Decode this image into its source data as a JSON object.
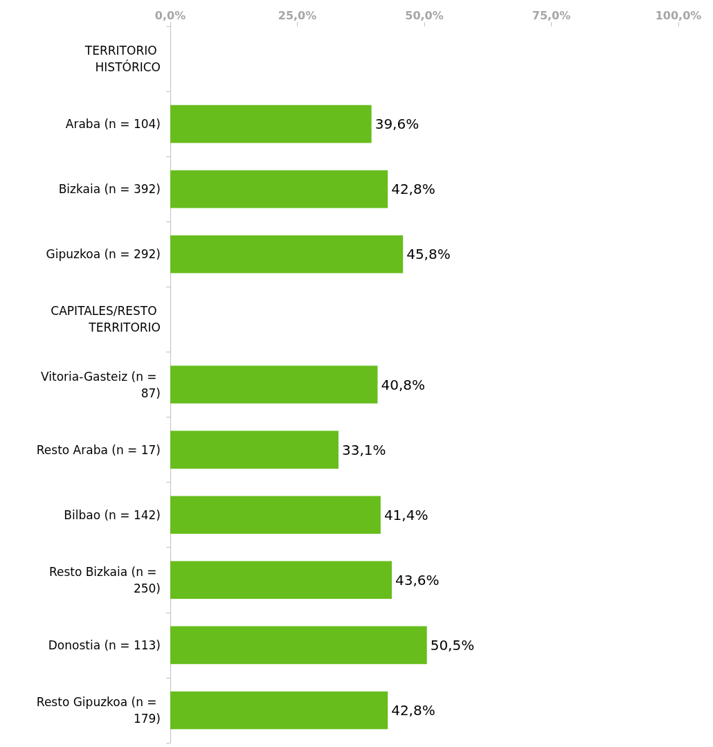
{
  "chart_data": {
    "type": "bar",
    "orientation": "horizontal",
    "categories": [
      "TERRITORIO HISTÓRICO",
      "Araba (n = 104)",
      "Bizkaia (n = 392)",
      "Gipuzkoa (n = 292)",
      "CAPITALES/RESTO TERRITORIO",
      "Vitoria-Gasteiz (n = 87)",
      "Resto Araba (n = 17)",
      "Bilbao (n = 142)",
      "Resto Bizkaia (n = 250)",
      "Donostia (n = 113)",
      "Resto Gipuzkoa (n = 179)"
    ],
    "values": [
      null,
      39.6,
      42.8,
      45.8,
      null,
      40.8,
      33.1,
      41.4,
      43.6,
      50.5,
      42.8
    ],
    "value_labels": [
      null,
      "39,6%",
      "42,8%",
      "45,8%",
      null,
      "40,8%",
      "33,1%",
      "41,4%",
      "43,6%",
      "50,5%",
      "42,8%"
    ],
    "color": "#66bd1c",
    "xlim": [
      0,
      100
    ],
    "xticks": [
      {
        "value": 0,
        "label": "0,0%"
      },
      {
        "value": 25,
        "label": "25,0%"
      },
      {
        "value": 50,
        "label": "50,0%"
      },
      {
        "value": 75,
        "label": "75,0%"
      },
      {
        "value": 100,
        "label": "100,0%"
      }
    ],
    "grid": false
  }
}
